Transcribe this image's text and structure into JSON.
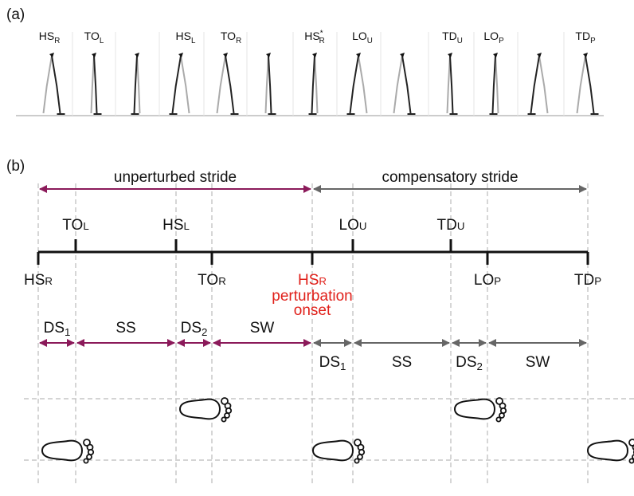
{
  "panel_a": {
    "label": "(a)",
    "events": [
      {
        "base": "HS",
        "sub": "R"
      },
      {
        "base": "TO",
        "sub": "L"
      },
      {
        "base": "HS",
        "sub": "L"
      },
      {
        "base": "TO",
        "sub": "R"
      },
      {
        "base": "HS",
        "sub": "R",
        "sup": "*"
      },
      {
        "base": "LO",
        "sub": "U"
      },
      {
        "base": "TD",
        "sub": "U"
      },
      {
        "base": "LO",
        "sub": "P"
      },
      {
        "base": "TD",
        "sub": "P"
      }
    ]
  },
  "panel_b": {
    "label": "(b)",
    "strides": [
      "unperturbed stride",
      "compensatory stride"
    ],
    "events_above": [
      {
        "base": "TO",
        "sub": "L"
      },
      {
        "base": "HS",
        "sub": "L"
      },
      {
        "base": "LO",
        "sub": "U"
      },
      {
        "base": "TD",
        "sub": "U"
      }
    ],
    "events_below": [
      {
        "base": "HS",
        "sub": "R"
      },
      {
        "base": "TO",
        "sub": "R"
      },
      {
        "base": "HS",
        "sub": "R",
        "note": [
          "perturbation",
          "onset"
        ]
      },
      {
        "base": "LO",
        "sub": "P"
      },
      {
        "base": "TD",
        "sub": "P"
      }
    ],
    "phases_unperturbed": [
      {
        "base": "DS",
        "sub": "1"
      },
      {
        "base": "SS"
      },
      {
        "base": "DS",
        "sub": "2"
      },
      {
        "base": "SW"
      }
    ],
    "phases_compensatory": [
      {
        "base": "DS",
        "sub": "1"
      },
      {
        "base": "SS"
      },
      {
        "base": "DS",
        "sub": "2"
      },
      {
        "base": "SW"
      }
    ]
  }
}
